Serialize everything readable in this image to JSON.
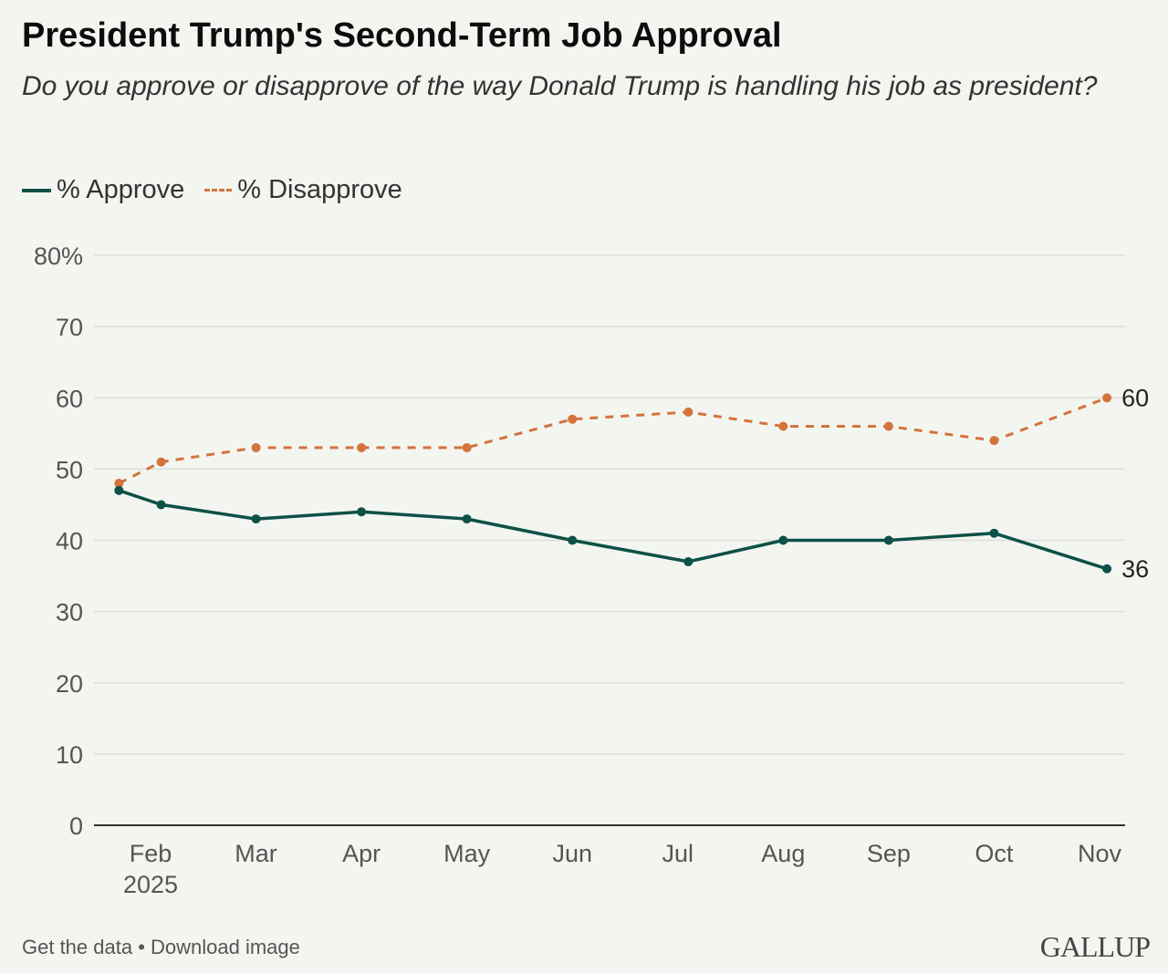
{
  "header": {
    "title": "President Trump's Second-Term Job Approval",
    "subtitle": "Do you approve or disapprove of the way Donald Trump is handling his job as president?"
  },
  "legend": {
    "approve": "% Approve",
    "disapprove": "% Disapprove"
  },
  "footer": {
    "links": "Get the data • Download image",
    "logo": "GALLUP"
  },
  "colors": {
    "approve": "#0d5147",
    "disapprove": "#d4733c"
  },
  "chart_data": {
    "type": "line",
    "title": "President Trump's Second-Term Job Approval",
    "subtitle": "Do you approve or disapprove of the way Donald Trump is handling his job as president?",
    "xlabel": "",
    "ylabel": "",
    "ylim": [
      0,
      80
    ],
    "yticks": [
      "0",
      "10",
      "20",
      "30",
      "40",
      "50",
      "60",
      "70",
      "80%"
    ],
    "ytick_values": [
      0,
      10,
      20,
      30,
      40,
      50,
      60,
      70,
      80
    ],
    "x_tick_labels": [
      "Feb\n2025",
      "Mar",
      "Apr",
      "May",
      "Jun",
      "Jul",
      "Aug",
      "Sep",
      "Oct",
      "Nov"
    ],
    "x_tick_positions_month": [
      2,
      3,
      4,
      5,
      6,
      7,
      8,
      9,
      10,
      11
    ],
    "x_range_month": [
      1.55,
      11.3
    ],
    "x": [
      1.7,
      2.1,
      3.0,
      4.0,
      5.0,
      6.0,
      7.1,
      8.0,
      9.0,
      10.0,
      11.07
    ],
    "grid": true,
    "legend_position": "top-left",
    "series": [
      {
        "name": "% Approve",
        "style": "solid",
        "values": [
          47,
          45,
          43,
          44,
          43,
          40,
          37,
          40,
          40,
          41,
          36
        ],
        "end_label": "36"
      },
      {
        "name": "% Disapprove",
        "style": "dashed",
        "values": [
          48,
          51,
          53,
          53,
          53,
          57,
          58,
          56,
          56,
          54,
          60
        ],
        "end_label": "60"
      }
    ]
  }
}
